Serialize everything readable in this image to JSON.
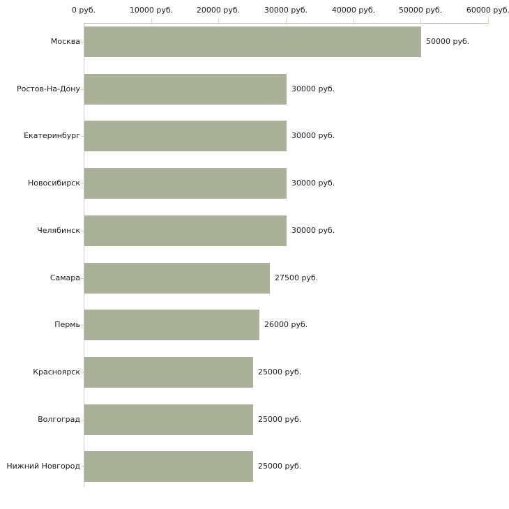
{
  "chart_data": {
    "type": "bar",
    "orientation": "horizontal",
    "title": "",
    "xlabel": "",
    "ylabel": "",
    "categories": [
      "Москва",
      "Ростов-На-Дону",
      "Екатеринбург",
      "Новосибирск",
      "Челябинск",
      "Самара",
      "Пермь",
      "Красноярск",
      "Волгоград",
      "Нижний Новгород"
    ],
    "values": [
      50000,
      30000,
      30000,
      30000,
      30000,
      27500,
      26000,
      25000,
      25000,
      25000
    ],
    "value_labels": [
      "50000 руб.",
      "30000 руб.",
      "30000 руб.",
      "30000 руб.",
      "30000 руб.",
      "27500 руб.",
      "26000 руб.",
      "25000 руб.",
      "25000 руб.",
      "25000 руб."
    ],
    "x_axis": {
      "position": "top",
      "range": [
        0,
        60000
      ],
      "ticks": [
        0,
        10000,
        20000,
        30000,
        40000,
        50000,
        60000
      ],
      "tick_labels": [
        "0 руб.",
        "10000 руб.",
        "20000 руб.",
        "30000 руб.",
        "40000 руб.",
        "50000 руб.",
        "60000 руб."
      ]
    },
    "legend": null,
    "grid": false,
    "colors": {
      "bar": "#abb199",
      "axis_line": "#c6c6c6",
      "tick_mark": "#d6d6ad",
      "text": "#1c1c1c",
      "background": "#ffffff"
    }
  }
}
